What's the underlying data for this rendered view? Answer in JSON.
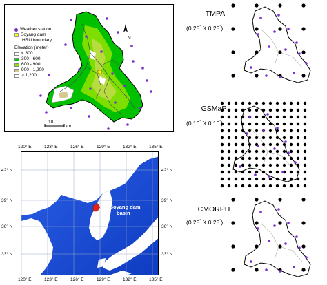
{
  "watershed_map": {
    "legend": {
      "weather_station": "Weather station",
      "soyang_dam": "Soyang dam",
      "hru_boundary": "HRU boundary",
      "elevation_title": "Elevation (meter)",
      "classes": [
        {
          "label": "< 300",
          "color": "#ffffff"
        },
        {
          "label": "300 - 600",
          "color": "#00c800"
        },
        {
          "label": "600 - 900",
          "color": "#8ee000"
        },
        {
          "label": "900 - 1,200",
          "color": "#d2c890"
        },
        {
          "label": "> 1,200",
          "color": "#ffffff"
        }
      ]
    },
    "north_label": "N",
    "scale_value": "10",
    "scale_unit": "km"
  },
  "region_map": {
    "top_lon_labels": [
      "120° E",
      "123° E",
      "126° E",
      "129° E",
      "132° E",
      "135° E"
    ],
    "bottom_lon_labels": [
      "120° E",
      "123° E",
      "126° E",
      "129° E",
      "132° E",
      "135° E"
    ],
    "left_lat_labels": [
      "42° N",
      "39° N",
      "36° N",
      "33° N"
    ],
    "right_lat_labels": [
      "42° N",
      "39° N",
      "36° N",
      "33° N"
    ],
    "basin_label_line1": "Soyang dam",
    "basin_label_line2": "basin",
    "sea_color": "#1a4fd6",
    "basin_color": "#e0201a"
  },
  "products": [
    {
      "name": "TMPA",
      "resolution_a": "(0.25",
      "resolution_b": " X 0.25",
      "resolution_end": ")",
      "deg": "°"
    },
    {
      "name": "GSMaP",
      "resolution_a": "(0.10",
      "resolution_b": " X 0.10",
      "resolution_end": ")",
      "deg": "°"
    },
    {
      "name": "CMORPH",
      "resolution_a": "(0.25",
      "resolution_b": " X 0.25",
      "resolution_end": ")",
      "deg": "°"
    }
  ],
  "colors": {
    "station": "#7a2fd0",
    "grid_point": "#000000"
  }
}
